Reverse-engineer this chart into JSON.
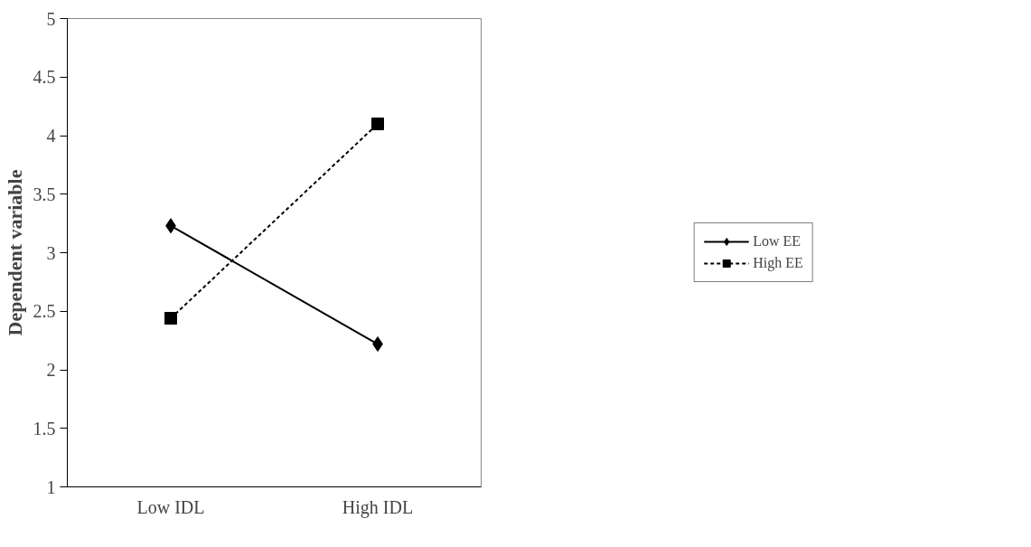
{
  "chart_data": {
    "type": "line",
    "ylabel": "Dependent variable",
    "categories": [
      "Low IDL",
      "High IDL"
    ],
    "series": [
      {
        "name": "Low EE",
        "color": "#000000",
        "values": [
          3.23,
          2.22
        ],
        "marker": "diamond",
        "line_style": "solid"
      },
      {
        "name": "High EE",
        "color": "#000000",
        "values": [
          2.44,
          4.1
        ],
        "marker": "square",
        "line_style": "dashed"
      }
    ],
    "ylim": [
      1,
      5
    ],
    "yticks": [
      1,
      1.5,
      2,
      2.5,
      3,
      3.5,
      4,
      4.5,
      5
    ],
    "grid": false,
    "legend": "right"
  }
}
